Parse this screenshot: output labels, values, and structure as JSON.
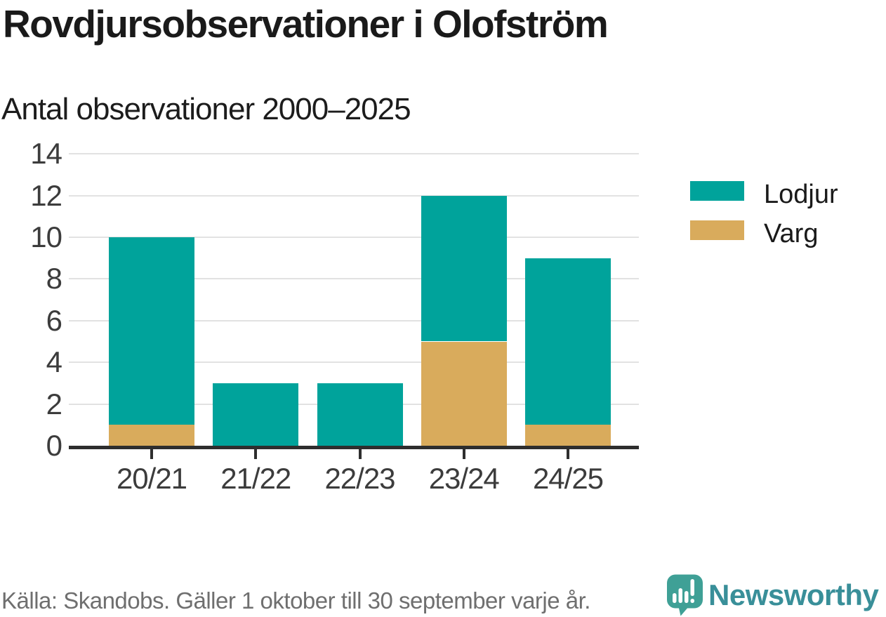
{
  "chart_data": {
    "type": "bar",
    "stacked": true,
    "title": "Rovdjursobservationer i Olofström",
    "subtitle": "Antal observationer 2000–2025",
    "categories": [
      "20/21",
      "21/22",
      "22/23",
      "23/24",
      "24/25"
    ],
    "series": [
      {
        "name": "Lodjur",
        "color": "#00A39B",
        "values": [
          9,
          3,
          3,
          7,
          8
        ]
      },
      {
        "name": "Varg",
        "color": "#D9AB5C",
        "values": [
          1,
          0,
          0,
          5,
          1
        ]
      }
    ],
    "xlabel": "",
    "ylabel": "",
    "ylim": [
      0,
      14
    ],
    "yticks": [
      0,
      2,
      4,
      6,
      8,
      10,
      12,
      14
    ],
    "grid": "horizontal",
    "legend_position": "right"
  },
  "footer": {
    "source": "Källa: Skandobs. Gäller 1 oktober till 30 september varje år.",
    "brand": "Newsworthy",
    "brand_colors": {
      "bubble": "#3FA096",
      "text": "#398F99"
    }
  }
}
